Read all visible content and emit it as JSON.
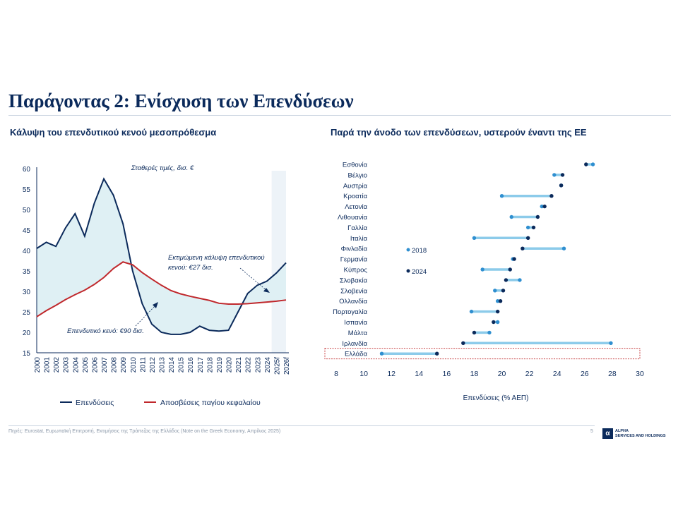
{
  "slide": {
    "title": "Παράγοντας 2: Ενίσχυση των Επενδύσεων",
    "source": "Πηγές: Eurostat, Ευρωπαϊκή Επιτροπή, Εκτιμήσεις της Τράπεζας της Ελλάδος (Note on the Greek Economy, Απρίλιος 2025)",
    "page_number": "5",
    "logo_text": "ALPHA\nSERVICES AND HOLDINGS"
  },
  "chart_data": [
    {
      "type": "line",
      "title": "Κάλυψη του επενδυτικού κενού μεσοπρόθεσμα",
      "unit_note": "Σταθερές τιμές, δισ. €",
      "x": [
        "2000",
        "2001",
        "2002",
        "2003",
        "2004",
        "2005",
        "2006",
        "2007",
        "2008",
        "2009",
        "2010",
        "2011",
        "2012",
        "2013",
        "2014",
        "2015",
        "2016",
        "2017",
        "2018",
        "2019",
        "2020",
        "2021",
        "2022",
        "2023",
        "2024",
        "2025f",
        "2026f"
      ],
      "ylim": [
        15,
        60
      ],
      "yticks": [
        15,
        20,
        25,
        30,
        35,
        40,
        45,
        50,
        55,
        60
      ],
      "forecast_from": "2025f",
      "series": [
        {
          "name": "Επενδύσεις",
          "color": "#0b2a5b",
          "values": [
            40.5,
            42.0,
            41.0,
            45.5,
            49.0,
            43.5,
            51.5,
            57.5,
            53.5,
            46.5,
            35.0,
            27.0,
            22.0,
            20.0,
            19.5,
            19.5,
            20.0,
            21.5,
            20.5,
            20.3,
            20.5,
            25.0,
            29.5,
            31.5,
            32.5,
            34.5,
            37.0
          ]
        },
        {
          "name": "Αποσβέσεις παγίου κεφαλαίου",
          "color": "#c0282c",
          "values": [
            23.8,
            25.3,
            26.6,
            28.0,
            29.2,
            30.3,
            31.7,
            33.4,
            35.6,
            37.2,
            36.5,
            34.6,
            33.0,
            31.5,
            30.2,
            29.4,
            28.8,
            28.3,
            27.8,
            27.1,
            26.9,
            26.9,
            27.0,
            27.2,
            27.4,
            27.6,
            27.9
          ]
        }
      ],
      "annotations": {
        "gap_past": "Επενδυτικό κενό: €90 δισ.",
        "gap_future_line1": "Εκτιμώμενη κάλυψη επενδυτικού",
        "gap_future_line2": "κενού: €27 δισ."
      },
      "shading_color": "#dff0f4"
    },
    {
      "type": "scatter",
      "title": "Παρά την άνοδο των επενδύσεων, υστερούν έναντι της ΕΕ",
      "xlabel": "Επενδύσεις (% ΑΕΠ)",
      "xlim": [
        8,
        30
      ],
      "xticks": [
        8,
        10,
        12,
        14,
        16,
        18,
        20,
        22,
        24,
        26,
        28,
        30
      ],
      "highlight": "Ελλάδα",
      "series": [
        {
          "name": "2018",
          "color": "#2f8fd0"
        },
        {
          "name": "2024",
          "color": "#0b2a5b"
        }
      ],
      "connector_color": "#8ccbea",
      "categories": [
        "Εσθονία",
        "Βέλγιο",
        "Αυστρία",
        "Κροατία",
        "Λετονία",
        "Λιθουανία",
        "Γαλλία",
        "Ιταλία",
        "Φινλαδία",
        "Γερμανία",
        "Κύπρος",
        "Σλοβακία",
        "Σλοβενία",
        "Ολλανδία",
        "Πορτογαλία",
        "Ισπανία",
        "Μάλτα",
        "Ιρλανδία",
        "Ελλάδα"
      ],
      "values_2018": [
        26.6,
        23.8,
        24.3,
        20.0,
        22.9,
        20.7,
        21.9,
        18.0,
        24.5,
        20.8,
        18.6,
        21.3,
        19.5,
        19.7,
        17.8,
        19.7,
        19.1,
        27.9,
        11.3
      ],
      "values_2024": [
        26.1,
        24.4,
        24.3,
        23.6,
        23.1,
        22.6,
        22.3,
        21.9,
        21.5,
        20.9,
        20.6,
        20.3,
        20.1,
        19.9,
        19.7,
        19.4,
        18.0,
        17.2,
        15.3
      ]
    }
  ]
}
